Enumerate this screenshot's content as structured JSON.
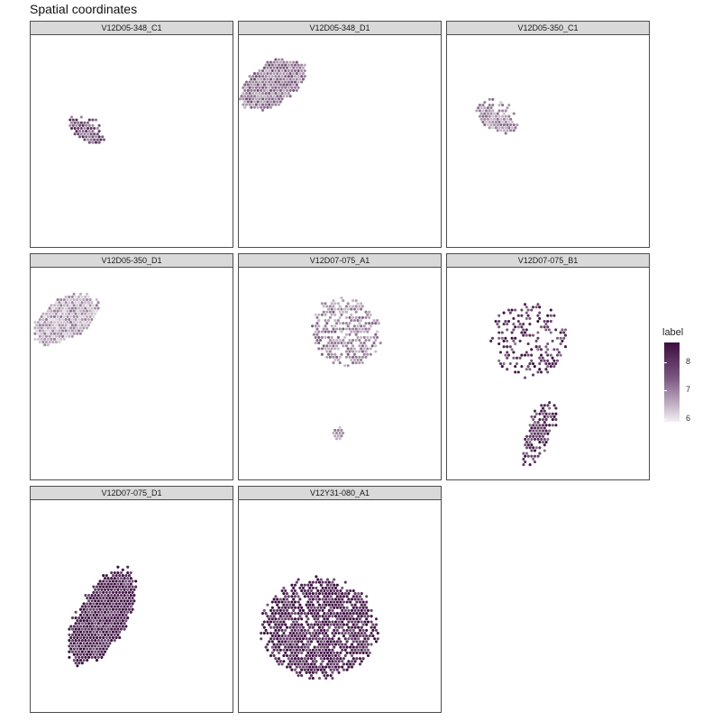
{
  "title": "Spatial coordinates",
  "chart_data": {
    "type": "scatter",
    "title": "Spatial coordinates",
    "facets": [
      {
        "name": "V12D05-348_C1",
        "mean_label": 7.7,
        "blobs": [
          [
            0.28,
            0.44,
            0.1,
            0.055,
            34,
            0
          ]
        ]
      },
      {
        "name": "V12D05-348_D1",
        "mean_label": 7.3,
        "blobs": [
          [
            0.17,
            0.23,
            0.1,
            0.17,
            58,
            1
          ]
        ]
      },
      {
        "name": "V12D05-350_C1",
        "mean_label": 7.0,
        "blobs": [
          [
            0.25,
            0.38,
            0.11,
            0.07,
            32,
            0
          ]
        ]
      },
      {
        "name": "V12D05-350_D1",
        "mean_label": 6.8,
        "blobs": [
          [
            0.17,
            0.24,
            0.1,
            0.17,
            58,
            1
          ]
        ]
      },
      {
        "name": "V12D07-075_A1",
        "mean_label": 7.1,
        "blobs": [
          [
            0.52,
            0.3,
            0.18,
            0.15,
            40,
            2
          ],
          [
            0.49,
            0.78,
            0.03,
            0.03,
            8,
            3
          ]
        ]
      },
      {
        "name": "V12D07-075_B1",
        "mean_label": 8.1,
        "blobs": [
          [
            0.4,
            0.34,
            0.19,
            0.17,
            26,
            4
          ],
          [
            0.45,
            0.78,
            0.07,
            0.16,
            18,
            5
          ]
        ]
      },
      {
        "name": "V12D07-075_D1",
        "mean_label": 8.5,
        "blobs": [
          [
            0.35,
            0.55,
            0.12,
            0.25,
            30,
            6
          ]
        ]
      },
      {
        "name": "V12Y31-080_A1",
        "mean_label": 8.4,
        "blobs": [
          [
            0.4,
            0.6,
            0.28,
            0.23,
            0,
            7
          ]
        ]
      }
    ],
    "legend": {
      "title": "label",
      "min": 5.9,
      "max": 8.7,
      "ticks": [
        6,
        7,
        8
      ],
      "colors": [
        "#f3f0f4",
        "#3b0d3f"
      ],
      "position": "right"
    },
    "grid": false
  }
}
